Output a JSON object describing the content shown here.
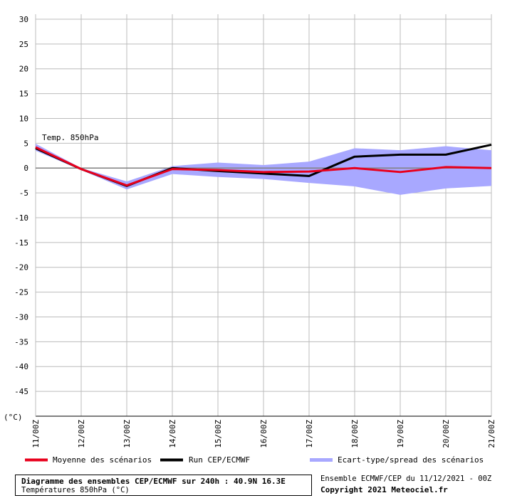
{
  "chart_data": {
    "type": "line",
    "x": [
      "11/00Z",
      "12/00Z",
      "13/00Z",
      "14/00Z",
      "15/00Z",
      "16/00Z",
      "17/00Z",
      "18/00Z",
      "19/00Z",
      "20/00Z",
      "21/00Z"
    ],
    "y_ticks": [
      30,
      25,
      20,
      15,
      10,
      5,
      0,
      -5,
      -10,
      -15,
      -20,
      -25,
      -30,
      -35,
      -40,
      -45
    ],
    "ylim": [
      -50,
      31
    ],
    "y_unit": "(°C)",
    "annotation": "Temp. 850hPa",
    "grid": true,
    "series": [
      {
        "name": "Moyenne des scénarios",
        "type": "line",
        "color": "#e8001c",
        "values": [
          4.2,
          -0.2,
          -3.5,
          -0.2,
          -0.4,
          -0.8,
          -0.7,
          0.0,
          -0.8,
          0.2,
          0.0
        ]
      },
      {
        "name": "Run CEP/ECMWF",
        "type": "line",
        "color": "#000000",
        "values": [
          4.0,
          -0.2,
          -3.6,
          0.0,
          -0.6,
          -1.1,
          -1.6,
          2.3,
          2.7,
          2.7,
          4.7
        ]
      },
      {
        "name": "Ecart-type/spread des scénarios",
        "type": "band",
        "color": "#a8a8ff",
        "upper": [
          4.9,
          0.0,
          -2.7,
          0.4,
          1.1,
          0.6,
          1.3,
          4.0,
          3.6,
          4.4,
          3.6
        ],
        "lower": [
          3.5,
          -0.4,
          -4.3,
          -1.2,
          -1.8,
          -2.2,
          -3.0,
          -3.7,
          -5.4,
          -4.1,
          -3.6
        ]
      }
    ],
    "legend": [
      {
        "label": "Moyenne des scénarios",
        "color": "#e8001c",
        "kind": "line"
      },
      {
        "label": "Run CEP/ECMWF",
        "color": "#000000",
        "kind": "line"
      },
      {
        "label": "Ecart-type/spread des scénarios",
        "color": "#a8a8ff",
        "kind": "band"
      }
    ]
  },
  "title_box": {
    "line1": "Diagramme des ensembles CEP/ECMWF sur 240h : 40.9N 16.3E",
    "line2": "Températures 850hPa (°C)"
  },
  "info": {
    "line1": "Ensemble ECMWF/CEP du 11/12/2021 - 00Z",
    "line2": "Copyright 2021 Meteociel.fr"
  }
}
